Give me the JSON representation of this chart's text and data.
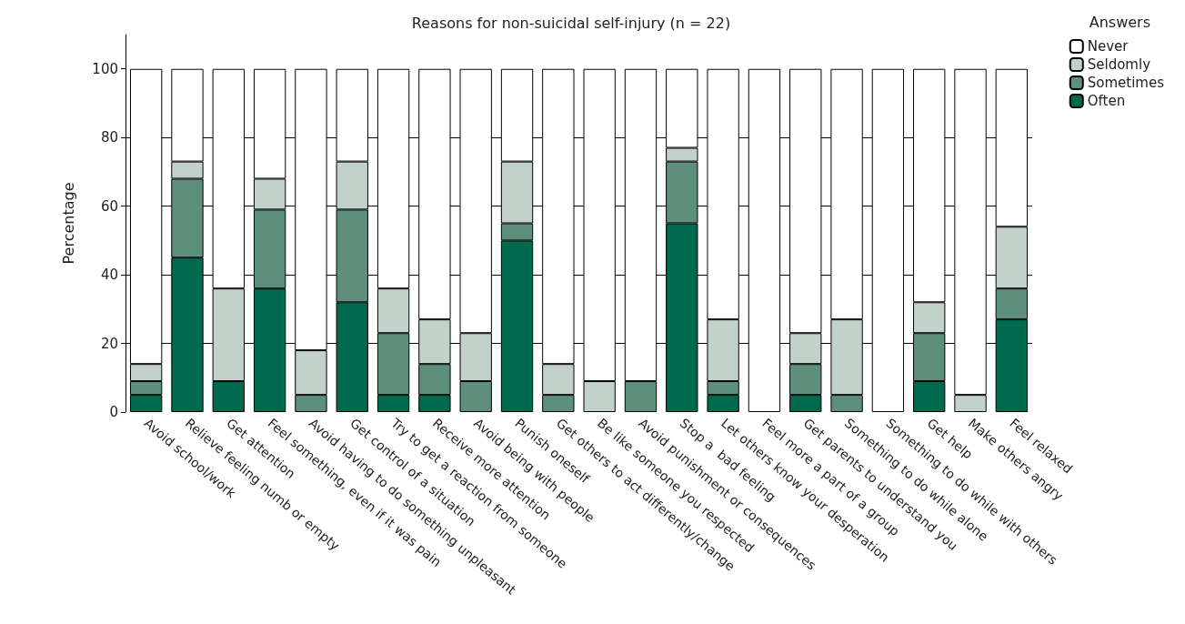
{
  "chart_data": {
    "type": "bar",
    "stacked": true,
    "title": "Reasons for non-suicidal self-injury (n = 22)",
    "ylabel": "Percentage",
    "legend_title": "Answers",
    "legend": "top right",
    "grid": "y",
    "ylim": [
      0,
      110
    ],
    "yticks": [
      0,
      20,
      40,
      60,
      80,
      100
    ],
    "categories": [
      "Avoid school/work",
      "Relieve feeling numb or empty",
      "Get attention",
      "Feel something, even if it was pain",
      "Avoid having to do something unpleasant",
      "Get control of a situation",
      "Try to get a reaction from someone",
      "Receive more attention",
      "Avoid being with people",
      "Punish oneself",
      "Get others to act differently/change",
      "Be like someone you respected",
      "Avoid punishment or consequences",
      "Stop a  bad feeling",
      "Let others know your desperation",
      "Feel more a part of a group",
      "Get parents to understand you",
      "Something to do while alone",
      "Something to do while with others",
      "Get help",
      "Make others angry",
      "Feel relaxed"
    ],
    "series": [
      {
        "name": "Often",
        "color": "#006a4e",
        "values": [
          5,
          45,
          9,
          36,
          0,
          32,
          5,
          5,
          0,
          50,
          0,
          0,
          0,
          55,
          5,
          0,
          5,
          0,
          0,
          9,
          0,
          27
        ]
      },
      {
        "name": "Sometimes",
        "color": "#5e8f7c",
        "values": [
          4,
          23,
          0,
          23,
          5,
          27,
          18,
          9,
          9,
          5,
          5,
          0,
          9,
          18,
          4,
          0,
          9,
          5,
          0,
          14,
          0,
          9
        ]
      },
      {
        "name": "Seldomly",
        "color": "#c3d1cb",
        "values": [
          5,
          5,
          27,
          9,
          13,
          14,
          13,
          13,
          14,
          18,
          9,
          9,
          0,
          4,
          18,
          0,
          9,
          22,
          0,
          9,
          5,
          18
        ]
      },
      {
        "name": "Never",
        "color": "#ffffff",
        "values": [
          86,
          27,
          64,
          32,
          82,
          27,
          64,
          73,
          77,
          27,
          86,
          91,
          91,
          23,
          73,
          100,
          77,
          73,
          100,
          68,
          95,
          46
        ]
      }
    ]
  }
}
